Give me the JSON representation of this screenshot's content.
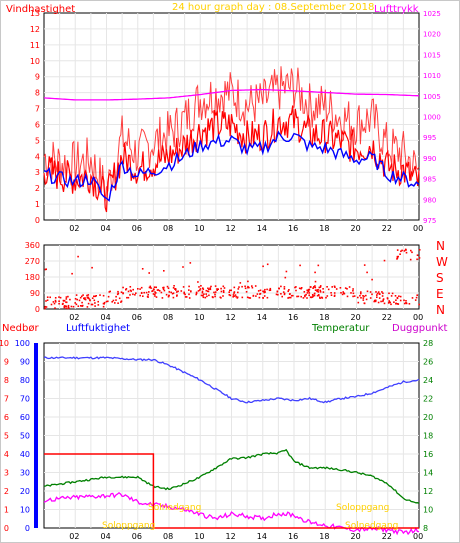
{
  "chart_data": [
    {
      "type": "line",
      "title": "24 hour graph day : 08.September 2018",
      "left_label": "Vindhastighet",
      "right_label": "Lufttrykk",
      "x_ticks": [
        "02",
        "04",
        "06",
        "08",
        "10",
        "12",
        "14",
        "16",
        "18",
        "20",
        "22",
        "00"
      ],
      "y_left_ticks": [
        "0",
        "1",
        "2",
        "3",
        "4",
        "5",
        "6",
        "7",
        "8",
        "9",
        "10",
        "11",
        "12",
        "13"
      ],
      "y_right_ticks": [
        "975",
        "980",
        "985",
        "990",
        "995",
        "1000",
        "1005",
        "1010",
        "1015",
        "1020",
        "1025"
      ],
      "ylim_left": [
        0,
        13
      ],
      "ylim_right": [
        975,
        1025
      ],
      "series": [
        {
          "color": "#ff0000",
          "role": "gust",
          "x": [
            0,
            1,
            2,
            3,
            4,
            5,
            6,
            7,
            8,
            9,
            10,
            11,
            12,
            13,
            14,
            15,
            16,
            17,
            18,
            19,
            20,
            21,
            22,
            23,
            24
          ],
          "y": [
            4,
            3.6,
            3.5,
            3.8,
            1.8,
            5.2,
            4.1,
            4.9,
            5.4,
            6.3,
            7.6,
            7.9,
            8.0,
            7.2,
            7.4,
            8.2,
            8.4,
            7.2,
            7.2,
            6.4,
            6.1,
            6.4,
            4.6,
            4.2,
            3.0
          ]
        },
        {
          "color": "#ff0000",
          "role": "average",
          "x": [
            0,
            1,
            2,
            3,
            4,
            5,
            6,
            7,
            8,
            9,
            10,
            11,
            12,
            13,
            14,
            15,
            16,
            17,
            18,
            19,
            20,
            21,
            22,
            23,
            24
          ],
          "y": [
            3.2,
            2.8,
            2.6,
            2.8,
            1.4,
            4.0,
            3.2,
            3.6,
            4.0,
            4.7,
            5.6,
            5.9,
            6.0,
            5.2,
            5.3,
            6.2,
            6.2,
            5.4,
            5.3,
            4.9,
            4.5,
            4.7,
            3.3,
            3.1,
            2.3
          ]
        },
        {
          "color": "#0000ff",
          "role": "direction-avg",
          "x": [
            0,
            1,
            2,
            3,
            4,
            5,
            6,
            7,
            8,
            9,
            10,
            11,
            12,
            13,
            14,
            15,
            16,
            17,
            18,
            19,
            20,
            21,
            22,
            23,
            24
          ],
          "y": [
            2.9,
            2.6,
            2.4,
            2.6,
            1.2,
            3.5,
            2.8,
            3.1,
            3.5,
            4.0,
            4.7,
            4.9,
            5.0,
            4.4,
            4.5,
            5.2,
            5.3,
            4.6,
            4.5,
            4.1,
            3.8,
            3.9,
            2.9,
            2.6,
            2.2
          ]
        },
        {
          "color": "#ff00ff",
          "role": "pressure",
          "x": [
            0,
            2,
            4,
            6,
            8,
            10,
            12,
            14,
            16,
            18,
            20,
            22,
            24
          ],
          "y": [
            1004.5,
            1004.0,
            1004.0,
            1004.2,
            1004.5,
            1005.3,
            1006.3,
            1006.5,
            1006.2,
            1005.8,
            1005.4,
            1005.3,
            1005.0
          ]
        }
      ]
    },
    {
      "type": "scatter",
      "x_ticks": [
        "02",
        "04",
        "06",
        "08",
        "10",
        "12",
        "14",
        "16",
        "18",
        "20",
        "22",
        "00"
      ],
      "y_left_ticks": [
        "0",
        "90",
        "180",
        "270",
        "360"
      ],
      "right_labels": [
        "N",
        "W",
        "S",
        "E",
        "N"
      ],
      "ylim": [
        0,
        360
      ]
    },
    {
      "type": "line",
      "labels": {
        "rain": "Nedbør",
        "humidity": "Luftfuktighet",
        "temperature": "Temperatur",
        "dewpoint": "Duggpunkt"
      },
      "annotations": [
        "Soloppgang",
        "Solnedgang",
        "Soloppgang",
        "Solnedgang"
      ],
      "x_ticks": [
        "02",
        "04",
        "06",
        "08",
        "10",
        "12",
        "14",
        "16",
        "18",
        "20",
        "22",
        "00"
      ],
      "y_left_ticks": [
        "0",
        "10",
        "20",
        "30",
        "40",
        "50",
        "60",
        "70",
        "80",
        "90",
        "100"
      ],
      "y_rain_ticks": [
        "0",
        "1",
        "2",
        "3",
        "4",
        "5",
        "6",
        "7",
        "8",
        "9",
        "10"
      ],
      "y_right_ticks": [
        "8",
        "10",
        "12",
        "14",
        "16",
        "18",
        "20",
        "22",
        "24",
        "26",
        "28"
      ],
      "ylim_left": [
        0,
        100
      ],
      "ylim_right": [
        8,
        28
      ],
      "series": [
        {
          "color": "#4040ff",
          "role": "humidity",
          "x": [
            0,
            2,
            4,
            6,
            7,
            8,
            9,
            10,
            11,
            12,
            13,
            14,
            15,
            16,
            17,
            18,
            19,
            20,
            21,
            22,
            23,
            24
          ],
          "y": [
            92,
            92,
            92,
            91,
            91,
            88,
            84,
            80,
            75,
            70,
            68,
            69,
            70,
            69,
            70,
            68,
            70,
            71,
            73,
            76,
            79,
            80
          ]
        },
        {
          "color": "#008000",
          "role": "temperature",
          "x": [
            0,
            2,
            4,
            6,
            7,
            8,
            9,
            10,
            11,
            12,
            13,
            14,
            15,
            15.5,
            16,
            17,
            18,
            19,
            20,
            21,
            22,
            23,
            24
          ],
          "y": [
            12.5,
            13.0,
            13.5,
            13.5,
            12.5,
            12.2,
            12.8,
            13.5,
            14.5,
            15.5,
            15.6,
            16.0,
            16.1,
            16.4,
            15.2,
            14.5,
            14.5,
            14.3,
            14.0,
            13.6,
            12.8,
            11.2,
            10.6
          ]
        },
        {
          "color": "#ff00ff",
          "role": "dewpoint",
          "x": [
            0,
            2,
            4,
            5,
            6,
            7,
            8,
            9,
            10,
            11,
            12,
            13,
            14,
            15,
            16,
            17,
            18,
            19,
            20,
            21,
            22,
            23,
            24
          ],
          "y": [
            11.0,
            11.3,
            11.5,
            11.6,
            10.8,
            10.5,
            10.3,
            10.0,
            9.5,
            9.0,
            9.5,
            9.3,
            9.0,
            9.6,
            9.4,
            8.6,
            8.3,
            8.0,
            7.8,
            7.9,
            7.8,
            7.5,
            7.8
          ]
        },
        {
          "color": "#ff0000",
          "role": "rain",
          "x": [
            0,
            7,
            7,
            24
          ],
          "y": [
            40,
            40,
            0,
            0
          ]
        }
      ]
    }
  ]
}
